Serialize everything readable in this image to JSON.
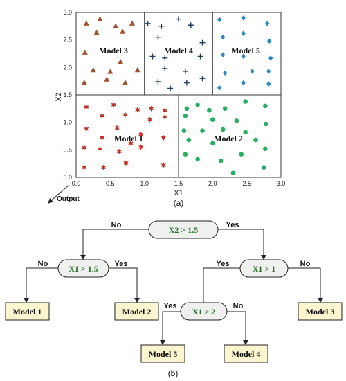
{
  "plot": {
    "x_label": "X1",
    "y_label": "X2",
    "x_ticks": [
      "0.0",
      "0.5",
      "1.0",
      "1.5",
      "2.0",
      "2.5",
      "3.0"
    ],
    "y_ticks": [
      "0.0",
      "0.5",
      "1.0",
      "1.5",
      "2.0",
      "2.5",
      "3.0"
    ],
    "output_label": "Output",
    "caption": "(a)"
  },
  "chart_data": {
    "type": "scatter",
    "xlim": [
      0,
      3
    ],
    "ylim": [
      0,
      3
    ],
    "partitions": [
      {
        "label": "Model 1",
        "x": [
          0,
          1.5
        ],
        "y": [
          0,
          1.5
        ]
      },
      {
        "label": "Model 2",
        "x": [
          1.5,
          3
        ],
        "y": [
          0,
          1.5
        ]
      },
      {
        "label": "Model 3",
        "x": [
          0,
          1
        ],
        "y": [
          1.5,
          3
        ]
      },
      {
        "label": "Model 4",
        "x": [
          1,
          2
        ],
        "y": [
          1.5,
          3
        ]
      },
      {
        "label": "Model 5",
        "x": [
          2,
          3
        ],
        "y": [
          1.5,
          3
        ]
      }
    ],
    "series": [
      {
        "marker": "triangle",
        "color": "#a0522d",
        "points": [
          [
            0.15,
            2.8
          ],
          [
            0.35,
            2.88
          ],
          [
            0.58,
            2.75
          ],
          [
            0.82,
            2.8
          ],
          [
            0.3,
            2.63
          ],
          [
            0.68,
            2.65
          ],
          [
            0.13,
            2.27
          ],
          [
            0.25,
            1.95
          ],
          [
            0.65,
            2.1
          ],
          [
            0.5,
            1.92
          ],
          [
            0.9,
            1.95
          ],
          [
            0.12,
            1.72
          ],
          [
            0.45,
            1.78
          ],
          [
            0.72,
            1.72
          ]
        ]
      },
      {
        "marker": "cross",
        "color": "#1f3a5a",
        "points": [
          [
            1.05,
            2.8
          ],
          [
            1.25,
            2.75
          ],
          [
            1.5,
            2.88
          ],
          [
            1.68,
            2.77
          ],
          [
            1.2,
            2.55
          ],
          [
            1.85,
            2.45
          ],
          [
            1.12,
            2.2
          ],
          [
            1.3,
            2.17
          ],
          [
            1.82,
            2.2
          ],
          [
            1.3,
            1.98
          ],
          [
            1.6,
            1.93
          ],
          [
            1.2,
            1.74
          ],
          [
            1.38,
            1.62
          ],
          [
            1.62,
            1.72
          ],
          [
            1.85,
            1.8
          ]
        ]
      },
      {
        "marker": "diamond",
        "color": "#2e86c1",
        "points": [
          [
            2.1,
            2.87
          ],
          [
            2.45,
            2.9
          ],
          [
            2.8,
            2.8
          ],
          [
            2.45,
            2.62
          ],
          [
            2.15,
            2.55
          ],
          [
            2.83,
            2.48
          ],
          [
            2.15,
            2.23
          ],
          [
            2.45,
            2.2
          ],
          [
            2.85,
            2.17
          ],
          [
            2.18,
            1.9
          ],
          [
            2.58,
            1.93
          ],
          [
            2.82,
            1.93
          ],
          [
            2.1,
            1.63
          ],
          [
            2.45,
            1.72
          ],
          [
            2.82,
            1.7
          ]
        ]
      },
      {
        "marker": "star",
        "color": "#d62e1e",
        "points": [
          [
            0.15,
            1.28
          ],
          [
            0.55,
            1.32
          ],
          [
            0.9,
            1.23
          ],
          [
            1.1,
            1.25
          ],
          [
            1.3,
            1.22
          ],
          [
            0.38,
            1.12
          ],
          [
            0.72,
            1.14
          ],
          [
            1.08,
            1.05
          ],
          [
            1.3,
            1.1
          ],
          [
            0.15,
            0.88
          ],
          [
            0.6,
            0.9
          ],
          [
            1.28,
            0.72
          ],
          [
            0.95,
            0.78
          ],
          [
            0.38,
            0.72
          ],
          [
            0.12,
            0.54
          ],
          [
            0.35,
            0.52
          ],
          [
            0.63,
            0.47
          ],
          [
            0.95,
            0.55
          ],
          [
            0.8,
            0.62
          ],
          [
            0.12,
            0.18
          ],
          [
            0.4,
            0.18
          ],
          [
            0.73,
            0.26
          ],
          [
            1.28,
            0.22
          ]
        ]
      },
      {
        "marker": "circle",
        "color": "#27ae60",
        "points": [
          [
            1.62,
            1.25
          ],
          [
            1.78,
            1.32
          ],
          [
            1.95,
            1.22
          ],
          [
            2.18,
            1.25
          ],
          [
            2.48,
            1.38
          ],
          [
            2.77,
            1.3
          ],
          [
            1.6,
            1.12
          ],
          [
            2.0,
            1.05
          ],
          [
            2.35,
            1.03
          ],
          [
            2.78,
            0.97
          ],
          [
            1.58,
            0.85
          ],
          [
            1.85,
            0.85
          ],
          [
            2.15,
            0.87
          ],
          [
            2.48,
            0.82
          ],
          [
            1.65,
            0.68
          ],
          [
            2.0,
            0.62
          ],
          [
            2.63,
            0.68
          ],
          [
            2.77,
            0.52
          ],
          [
            1.6,
            0.42
          ],
          [
            1.78,
            0.33
          ],
          [
            2.12,
            0.3
          ],
          [
            2.42,
            0.42
          ],
          [
            2.3,
            0.08
          ],
          [
            2.75,
            0.18
          ]
        ]
      }
    ]
  },
  "tree": {
    "caption": "(b)",
    "root": "X2 > 1.5",
    "left_cond": "X1 > 1.5",
    "right_cond": "X1 > 1",
    "inner_cond": "X1 > 2",
    "no": "No",
    "yes": "Yes",
    "leaves": {
      "model1": "Model 1",
      "model2": "Model 2",
      "model3": "Model 3",
      "model4": "Model 4",
      "model5": "Model 5"
    }
  }
}
